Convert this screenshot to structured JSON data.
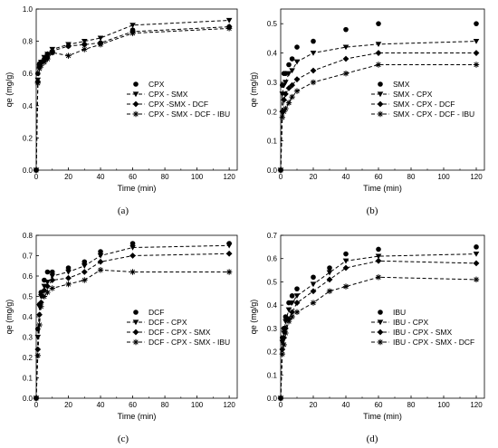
{
  "chart_data": [
    {
      "type": "line",
      "panel_label": "(a)",
      "xlabel": "Time (min)",
      "ylabel": "qe (mg/g)",
      "xlim": [
        0,
        125
      ],
      "ylim": [
        0,
        1.0
      ],
      "xticks": [
        0,
        20,
        40,
        60,
        80,
        100,
        120
      ],
      "yticks": [
        0.0,
        0.2,
        0.4,
        0.6,
        0.8,
        1.0
      ],
      "tick_labels_x": [
        "0",
        "20",
        "40",
        "60",
        "80",
        "100",
        "120"
      ],
      "tick_labels_y": [
        "0.0",
        "0.2",
        "0.4",
        "0.6",
        "0.8",
        "1.0"
      ],
      "legend_position": "bottom-right",
      "x": [
        0,
        1,
        2,
        3,
        5,
        7,
        10,
        20,
        30,
        40,
        60,
        120
      ],
      "series": [
        {
          "name": "CPX",
          "marker": "circle",
          "line": "none",
          "values": [
            0.0,
            0.6,
            0.66,
            0.67,
            0.69,
            0.7,
            0.73,
            0.77,
            0.78,
            0.79,
            0.87,
            0.89
          ]
        },
        {
          "name": "CPX - SMX",
          "marker": "triangle-down",
          "line": "dashed",
          "values": [
            0.0,
            0.56,
            0.64,
            0.67,
            0.7,
            0.72,
            0.75,
            0.78,
            0.8,
            0.82,
            0.9,
            0.93
          ]
        },
        {
          "name": "CPX -SMX - DCF",
          "marker": "diamond",
          "line": "dashed",
          "values": [
            0.0,
            0.55,
            0.64,
            0.67,
            0.68,
            0.72,
            0.74,
            0.77,
            0.78,
            0.79,
            0.86,
            0.89
          ]
        },
        {
          "name": "CPX - SMX - DCF - IBU",
          "marker": "asterisk",
          "line": "dashed",
          "values": [
            0.0,
            0.54,
            0.63,
            0.65,
            0.67,
            0.69,
            0.73,
            0.71,
            0.75,
            0.78,
            0.85,
            0.88
          ]
        }
      ]
    },
    {
      "type": "line",
      "panel_label": "(b)",
      "xlabel": "Time (min)",
      "ylabel": "qe (mg/g)",
      "xlim": [
        0,
        125
      ],
      "ylim": [
        0,
        0.55
      ],
      "xticks": [
        0,
        20,
        40,
        60,
        80,
        100,
        120
      ],
      "yticks": [
        0.0,
        0.1,
        0.2,
        0.3,
        0.4,
        0.5
      ],
      "tick_labels_x": [
        "0",
        "20",
        "40",
        "60",
        "80",
        "100",
        "120"
      ],
      "tick_labels_y": [
        "0.0",
        "0.1",
        "0.2",
        "0.3",
        "0.4",
        "0.5"
      ],
      "legend_position": "bottom-right",
      "x": [
        0,
        1,
        2,
        3,
        5,
        7,
        10,
        20,
        40,
        60,
        120
      ],
      "series": [
        {
          "name": "SMX",
          "marker": "circle",
          "line": "none",
          "values": [
            0.0,
            0.29,
            0.33,
            0.33,
            0.36,
            0.38,
            0.42,
            0.44,
            0.48,
            0.5,
            0.5
          ]
        },
        {
          "name": "SMX - CPX",
          "marker": "triangle-down",
          "line": "dashed",
          "values": [
            0.0,
            0.26,
            0.29,
            0.3,
            0.33,
            0.34,
            0.37,
            0.4,
            0.42,
            0.43,
            0.44
          ]
        },
        {
          "name": "SMX - CPX - DCF",
          "marker": "diamond",
          "line": "dashed",
          "values": [
            0.0,
            0.2,
            0.24,
            0.26,
            0.28,
            0.29,
            0.31,
            0.34,
            0.38,
            0.4,
            0.4
          ]
        },
        {
          "name": "SMX - CPX - DCF - IBU",
          "marker": "asterisk",
          "line": "dashed",
          "values": [
            0.0,
            0.18,
            0.2,
            0.21,
            0.23,
            0.25,
            0.27,
            0.3,
            0.33,
            0.36,
            0.36
          ]
        }
      ]
    },
    {
      "type": "line",
      "panel_label": "(c)",
      "xlabel": "Time (min)",
      "ylabel": "qe (mg/g)",
      "xlim": [
        0,
        125
      ],
      "ylim": [
        0,
        0.8
      ],
      "xticks": [
        0,
        20,
        40,
        60,
        80,
        100,
        120
      ],
      "yticks": [
        0.0,
        0.1,
        0.2,
        0.3,
        0.4,
        0.5,
        0.6,
        0.7,
        0.8
      ],
      "tick_labels_x": [
        "0",
        "20",
        "40",
        "60",
        "80",
        "100",
        "120"
      ],
      "tick_labels_y": [
        "0.0",
        "0.1",
        "0.2",
        "0.3",
        "0.4",
        "0.5",
        "0.6",
        "0.7",
        "0.8"
      ],
      "legend_position": "bottom-right",
      "x": [
        0,
        1,
        2,
        3,
        5,
        7,
        10,
        20,
        30,
        40,
        60,
        120
      ],
      "series": [
        {
          "name": "DCF",
          "marker": "circle",
          "line": "none",
          "values": [
            0.0,
            0.34,
            0.46,
            0.52,
            0.58,
            0.62,
            0.62,
            0.64,
            0.67,
            0.72,
            0.76,
            0.76
          ]
        },
        {
          "name": "DCF - CPX",
          "marker": "triangle-down",
          "line": "dashed",
          "values": [
            0.0,
            0.3,
            0.45,
            0.5,
            0.55,
            0.57,
            0.6,
            0.62,
            0.65,
            0.7,
            0.74,
            0.75
          ]
        },
        {
          "name": "DCF - CPX - SMX",
          "marker": "diamond",
          "line": "dashed",
          "values": [
            0.0,
            0.24,
            0.41,
            0.47,
            0.53,
            0.55,
            0.58,
            0.59,
            0.62,
            0.67,
            0.7,
            0.71
          ]
        },
        {
          "name": "DCF - CPX - SMX - IBU",
          "marker": "asterisk",
          "line": "dashed",
          "values": [
            0.0,
            0.21,
            0.36,
            0.45,
            0.5,
            0.52,
            0.54,
            0.56,
            0.58,
            0.63,
            0.62,
            0.62
          ]
        }
      ]
    },
    {
      "type": "line",
      "panel_label": "(d)",
      "xlabel": "Time (min)",
      "ylabel": "qe (mg/g)",
      "xlim": [
        0,
        125
      ],
      "ylim": [
        0,
        0.7
      ],
      "xticks": [
        0,
        20,
        40,
        60,
        80,
        100,
        120
      ],
      "yticks": [
        0.0,
        0.1,
        0.2,
        0.3,
        0.4,
        0.5,
        0.6,
        0.7
      ],
      "tick_labels_x": [
        "0",
        "20",
        "40",
        "60",
        "80",
        "100",
        "120"
      ],
      "tick_labels_y": [
        "0.0",
        "0.1",
        "0.2",
        "0.3",
        "0.4",
        "0.5",
        "0.6",
        "0.7"
      ],
      "legend_position": "bottom-right",
      "x": [
        0,
        1,
        2,
        3,
        5,
        7,
        10,
        20,
        30,
        40,
        60,
        120
      ],
      "series": [
        {
          "name": "IBU",
          "marker": "circle",
          "line": "none",
          "values": [
            0.0,
            0.26,
            0.3,
            0.35,
            0.41,
            0.44,
            0.47,
            0.52,
            0.56,
            0.62,
            0.64,
            0.65
          ]
        },
        {
          "name": "IBU - CPX",
          "marker": "triangle-down",
          "line": "dashed",
          "values": [
            0.0,
            0.24,
            0.28,
            0.33,
            0.38,
            0.41,
            0.44,
            0.49,
            0.54,
            0.59,
            0.61,
            0.62
          ]
        },
        {
          "name": "IBU - CPX - SMX",
          "marker": "diamond",
          "line": "dashed",
          "values": [
            0.0,
            0.21,
            0.26,
            0.3,
            0.34,
            0.37,
            0.41,
            0.46,
            0.51,
            0.56,
            0.59,
            0.58
          ]
        },
        {
          "name": "IBU - CPX - SMX - DCF",
          "marker": "asterisk",
          "line": "dashed",
          "values": [
            0.0,
            0.19,
            0.23,
            0.28,
            0.33,
            0.35,
            0.37,
            0.41,
            0.46,
            0.48,
            0.52,
            0.51
          ]
        }
      ]
    }
  ]
}
